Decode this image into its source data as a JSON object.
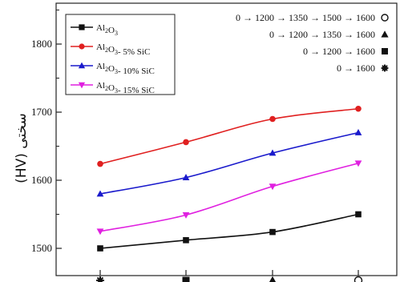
{
  "chart_data": {
    "type": "line",
    "ylabel": "سختی (HV)",
    "ylim": [
      1460,
      1860
    ],
    "yticks": [
      1500,
      1600,
      1700,
      1800
    ],
    "x_categories": [
      {
        "name": "cat-1600",
        "marker": "asterisk"
      },
      {
        "name": "cat-1200-1600",
        "marker": "square"
      },
      {
        "name": "cat-1200-1350-1600",
        "marker": "triangle"
      },
      {
        "name": "cat-1200-1350-1500-1600",
        "marker": "circle"
      }
    ],
    "series": [
      {
        "name": "Al2O3",
        "name_base": "Al",
        "name_sub1": "2",
        "name_mid": "O",
        "name_sub2": "3",
        "name_tail": "",
        "color": "#111111",
        "marker": "square",
        "values": [
          1500,
          1512,
          1524,
          1550
        ]
      },
      {
        "name": "Al2O3- 5% SiC",
        "name_base": "Al",
        "name_sub1": "2",
        "name_mid": "O",
        "name_sub2": "3",
        "name_tail": "- 5% SiC",
        "color": "#e02020",
        "marker": "circle",
        "values": [
          1624,
          1656,
          1690,
          1705
        ]
      },
      {
        "name": "Al2O3- 10% SiC",
        "name_base": "Al",
        "name_sub1": "2",
        "name_mid": "O",
        "name_sub2": "3",
        "name_tail": "- 10% SiC",
        "color": "#1a1acc",
        "marker": "triangle",
        "values": [
          1580,
          1604,
          1640,
          1670
        ]
      },
      {
        "name": "Al2O3- 15% SiC",
        "name_base": "Al",
        "name_sub1": "2",
        "name_mid": "O",
        "name_sub2": "3",
        "name_tail": "- 15% SiC",
        "color": "#e020e0",
        "marker": "triangle-down",
        "values": [
          1525,
          1549,
          1591,
          1625
        ]
      }
    ],
    "schedule_key": [
      {
        "text": "0 → 1200 → 1350 → 1500 → 1600",
        "marker": "circle"
      },
      {
        "text": "0 → 1200 → 1350 → 1600",
        "marker": "triangle"
      },
      {
        "text": "0 → 1200 → 1600",
        "marker": "square"
      },
      {
        "text": "0 → 1600",
        "marker": "asterisk"
      }
    ],
    "legend_position": "top-left",
    "grid": false
  }
}
